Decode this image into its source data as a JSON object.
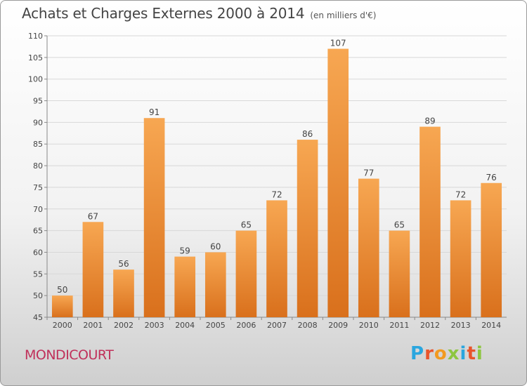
{
  "header": {
    "title": "Achats et Charges Externes 2000 à 2014",
    "subtitle": "(en milliers d'€)"
  },
  "footer": {
    "commune": "MONDICOURT",
    "logo_letters": [
      "P",
      "r",
      "o",
      "x",
      "i",
      "t",
      "i"
    ],
    "logo_colors": [
      "#2aa6df",
      "#e9542b",
      "#f29a1f",
      "#8dc63f",
      "#2aa6df",
      "#e9542b",
      "#8dc63f"
    ]
  },
  "colors": {
    "bar_light": "#f7a752",
    "bar_dark": "#d9701c",
    "grid": "#d8d8d8",
    "axis_text": "#444444"
  },
  "chart_data": {
    "type": "bar",
    "categories": [
      "2000",
      "2001",
      "2002",
      "2003",
      "2004",
      "2005",
      "2006",
      "2007",
      "2008",
      "2009",
      "2010",
      "2011",
      "2012",
      "2013",
      "2014"
    ],
    "values": [
      50,
      67,
      56,
      91,
      59,
      60,
      65,
      72,
      86,
      107,
      77,
      65,
      89,
      72,
      76
    ],
    "ylim": [
      45,
      110
    ],
    "yticks": [
      45,
      50,
      55,
      60,
      65,
      70,
      75,
      80,
      85,
      90,
      95,
      100,
      105,
      110
    ],
    "grid": true
  }
}
